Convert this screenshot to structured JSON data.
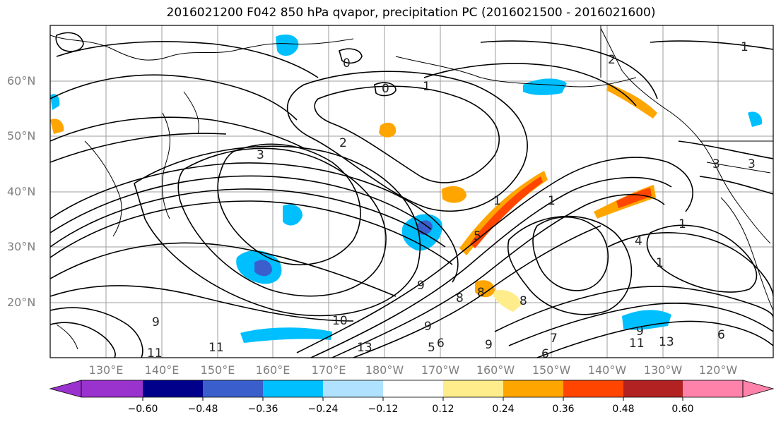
{
  "title": "2016021200 F042 850 hPa qvapor, precipitation PC (2016021500 - 2016021600)",
  "lat_labels": [
    "60°N",
    "50°N",
    "40°N",
    "30°N",
    "20°N"
  ],
  "lon_labels": [
    "130°E",
    "140°E",
    "150°E",
    "160°E",
    "170°E",
    "180°W",
    "170°W",
    "160°W",
    "150°W",
    "140°W",
    "130°W",
    "120°W"
  ],
  "colorbar": {
    "colors": [
      "#9a32cd",
      "#00008b",
      "#3a5fcd",
      "#00bfff",
      "#b0e2ff",
      "#ffffff",
      "#ffec8b",
      "#ffa500",
      "#ff4500",
      "#b22222",
      "#ff82ab"
    ],
    "ticks": [
      "−0.60",
      "−0.48",
      "−0.36",
      "−0.24",
      "−0.12",
      "0.12",
      "0.24",
      "0.36",
      "0.48",
      "0.60"
    ]
  },
  "contour_labels": [
    "0",
    "1",
    "2",
    "2",
    "3",
    "1",
    "5",
    "1",
    "4",
    "1",
    "1",
    "9",
    "10",
    "9",
    "8",
    "6",
    "9",
    "6",
    "11",
    "13",
    "5",
    "3",
    "1",
    "0",
    "3",
    "8",
    "7",
    "9",
    "11",
    "11",
    "13",
    "9",
    "6",
    "8"
  ]
}
